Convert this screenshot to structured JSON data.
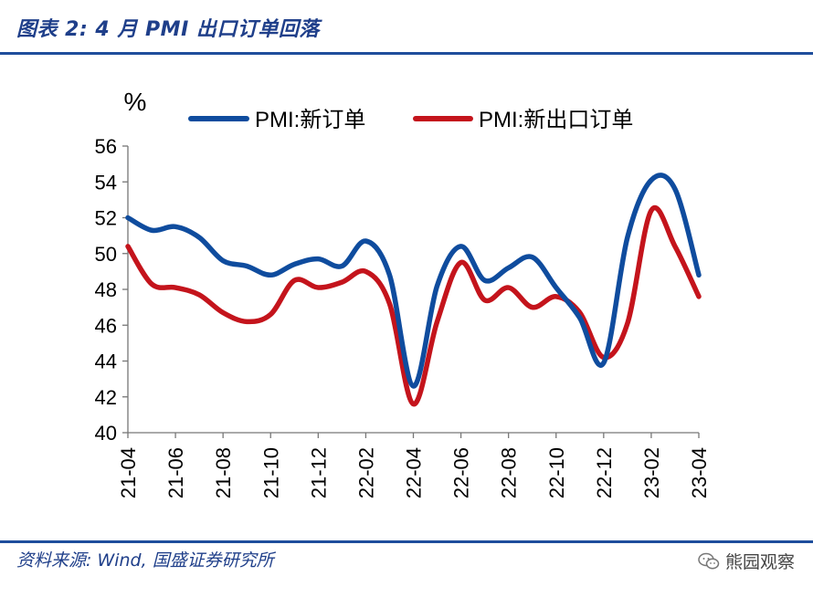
{
  "header": {
    "title": "图表 2:  4 月 PMI 出口订单回落"
  },
  "footer": {
    "source": "资料来源: Wind, 国盛证券研究所",
    "watermark": "熊园观察"
  },
  "icons": {
    "watermark": "wechat-logo-icon"
  },
  "colors": {
    "series_1": "#0f4c9e",
    "series_2": "#c4141c",
    "rule": "#1f4e9c",
    "title": "#1f3f8a"
  },
  "chart_data": {
    "type": "line",
    "ylabel": "%",
    "ylim": [
      40,
      56
    ],
    "yticks": [
      "40",
      "42",
      "44",
      "46",
      "48",
      "50",
      "52",
      "54",
      "56"
    ],
    "x": [
      "21-04",
      "21-05",
      "21-06",
      "21-07",
      "21-08",
      "21-09",
      "21-10",
      "21-11",
      "21-12",
      "22-01",
      "22-02",
      "22-03",
      "22-04",
      "22-05",
      "22-06",
      "22-07",
      "22-08",
      "22-09",
      "22-10",
      "22-11",
      "22-12",
      "23-01",
      "23-02",
      "23-03",
      "23-04"
    ],
    "xticks": [
      "21-04",
      "21-06",
      "21-08",
      "21-10",
      "21-12",
      "22-02",
      "22-04",
      "22-06",
      "22-08",
      "22-10",
      "22-12",
      "23-02",
      "23-04"
    ],
    "legend_position": "top",
    "series": [
      {
        "name": "PMI:新订单",
        "values": [
          52.0,
          51.3,
          51.5,
          50.9,
          49.6,
          49.3,
          48.8,
          49.4,
          49.7,
          49.3,
          50.7,
          48.8,
          42.6,
          48.2,
          50.4,
          48.5,
          49.2,
          49.8,
          48.1,
          46.4,
          43.9,
          50.9,
          54.1,
          53.6,
          48.8
        ]
      },
      {
        "name": "PMI:新出口订单",
        "values": [
          50.4,
          48.3,
          48.1,
          47.7,
          46.7,
          46.2,
          46.6,
          48.5,
          48.1,
          48.4,
          49.0,
          47.2,
          41.6,
          46.2,
          49.5,
          47.4,
          48.1,
          47.0,
          47.6,
          46.7,
          44.2,
          46.1,
          52.4,
          50.4,
          47.6
        ]
      }
    ]
  }
}
